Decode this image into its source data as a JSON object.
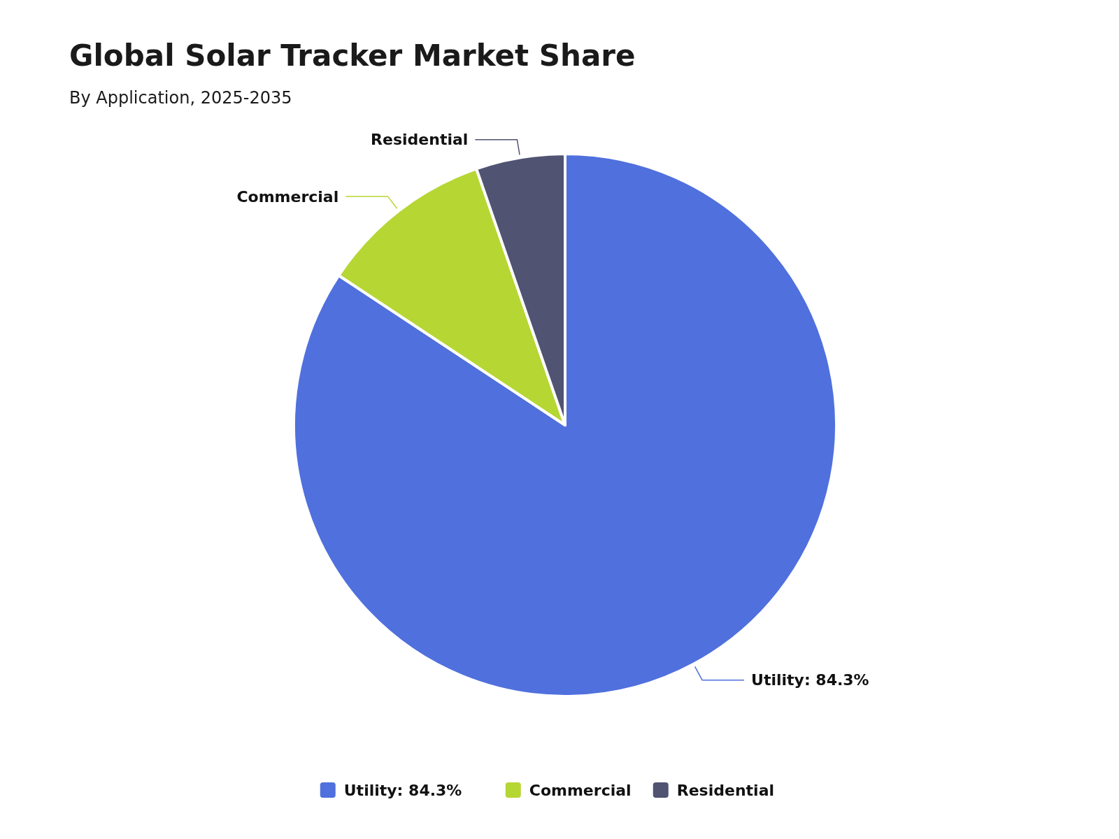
{
  "chart_data": {
    "type": "pie",
    "title": "Global Solar Tracker Market  Share",
    "subtitle": "By Application, 2025-2035",
    "categories": [
      "Utility: 84.3%",
      "Commercial",
      "Residential"
    ],
    "values": [
      84.3,
      10.4,
      5.3
    ],
    "colors": [
      "#5070dd",
      "#b6d634",
      "#505372"
    ],
    "legend": "bottom"
  }
}
